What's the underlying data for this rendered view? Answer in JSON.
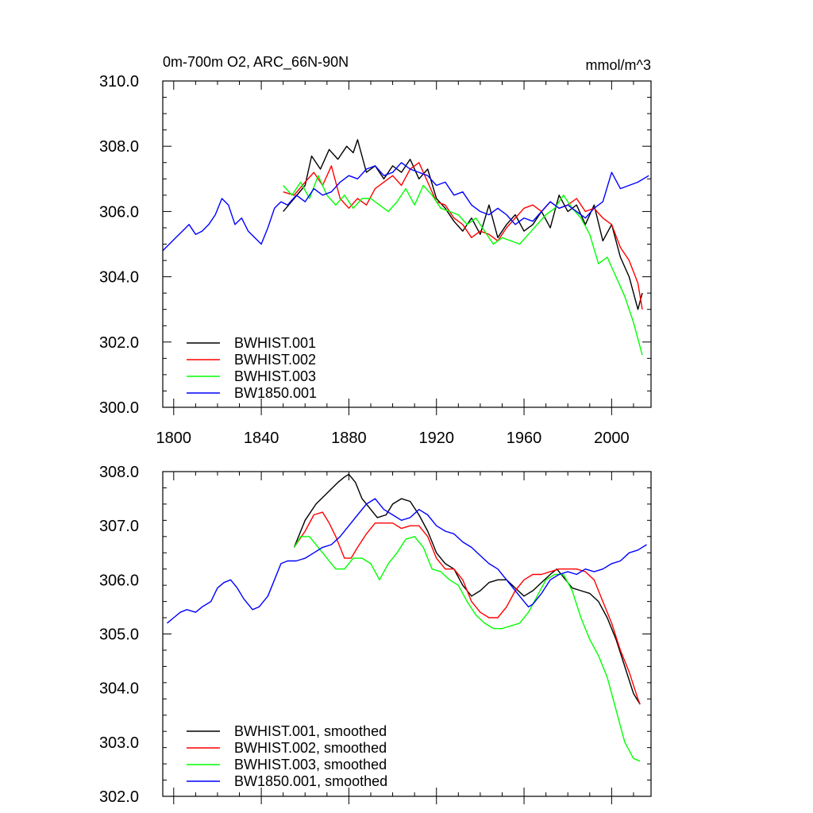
{
  "panels": [
    {
      "title_left": "0m-700m O2, ARC_66N-90N",
      "title_right": "mmol/m^3"
    },
    {
      "title_left": "",
      "title_right": ""
    }
  ],
  "chart_data": [
    {
      "type": "line",
      "xlim": [
        1795,
        2018
      ],
      "ylim": [
        300,
        310
      ],
      "x_ticks": [
        "1800",
        "1840",
        "1880",
        "1920",
        "1960",
        "2000"
      ],
      "y_ticks": [
        "300.0",
        "302.0",
        "304.0",
        "306.0",
        "308.0",
        "310.0"
      ],
      "legend_position": "bottom-left",
      "series": [
        {
          "name": "BWHIST.001",
          "color": "#000000",
          "x": [
            1850,
            1855,
            1860,
            1863,
            1867,
            1871,
            1875,
            1879,
            1882,
            1884,
            1888,
            1892,
            1896,
            1900,
            1904,
            1908,
            1912,
            1916,
            1920,
            1924,
            1928,
            1932,
            1936,
            1940,
            1944,
            1948,
            1952,
            1956,
            1960,
            1964,
            1968,
            1972,
            1976,
            1980,
            1984,
            1988,
            1992,
            1996,
            2000,
            2004,
            2008,
            2012,
            2014
          ],
          "y": [
            306.0,
            306.4,
            306.8,
            307.7,
            307.3,
            307.9,
            307.6,
            308.0,
            307.8,
            308.2,
            307.2,
            307.4,
            307.0,
            307.4,
            307.2,
            307.6,
            307.0,
            307.3,
            306.4,
            306.1,
            305.7,
            305.4,
            305.8,
            305.3,
            306.2,
            305.2,
            305.6,
            305.9,
            305.4,
            305.6,
            306.0,
            305.5,
            306.5,
            306.0,
            306.2,
            305.6,
            306.2,
            305.1,
            305.6,
            304.6,
            304.0,
            303.0,
            303.5
          ]
        },
        {
          "name": "BWHIST.002",
          "color": "#ff0000",
          "x": [
            1850,
            1855,
            1860,
            1864,
            1868,
            1872,
            1876,
            1880,
            1884,
            1888,
            1892,
            1896,
            1900,
            1904,
            1908,
            1912,
            1916,
            1920,
            1924,
            1928,
            1932,
            1936,
            1940,
            1944,
            1948,
            1952,
            1956,
            1960,
            1964,
            1968,
            1972,
            1976,
            1980,
            1984,
            1988,
            1992,
            1996,
            2000,
            2004,
            2008,
            2012,
            2014
          ],
          "y": [
            306.6,
            306.5,
            306.9,
            307.2,
            306.8,
            307.4,
            306.4,
            306.1,
            306.4,
            306.2,
            306.7,
            306.9,
            307.1,
            306.8,
            307.3,
            307.5,
            306.9,
            306.3,
            306.2,
            305.8,
            305.6,
            305.2,
            305.4,
            305.3,
            305.1,
            305.5,
            305.8,
            306.1,
            306.2,
            306.0,
            306.3,
            306.1,
            306.2,
            306.4,
            306.0,
            306.1,
            305.8,
            305.6,
            304.9,
            304.5,
            303.8,
            303.0
          ]
        },
        {
          "name": "BWHIST.003",
          "color": "#00ff00",
          "x": [
            1850,
            1854,
            1858,
            1862,
            1866,
            1870,
            1874,
            1878,
            1882,
            1886,
            1890,
            1894,
            1898,
            1902,
            1906,
            1910,
            1914,
            1918,
            1922,
            1926,
            1930,
            1934,
            1938,
            1942,
            1946,
            1950,
            1954,
            1958,
            1962,
            1966,
            1970,
            1974,
            1978,
            1982,
            1986,
            1990,
            1994,
            1998,
            2002,
            2006,
            2010,
            2014
          ],
          "y": [
            306.8,
            306.5,
            306.9,
            306.4,
            307.1,
            306.5,
            306.2,
            306.5,
            306.1,
            306.4,
            306.4,
            306.2,
            306.0,
            306.3,
            306.7,
            306.2,
            306.8,
            306.5,
            306.1,
            306.0,
            305.9,
            305.6,
            305.8,
            305.4,
            305.0,
            305.2,
            305.1,
            305.0,
            305.3,
            305.6,
            305.9,
            306.1,
            306.5,
            306.1,
            305.8,
            305.3,
            304.4,
            304.6,
            304.0,
            303.4,
            302.6,
            301.6
          ]
        },
        {
          "name": "BW1850.001",
          "color": "#0000ff",
          "x": [
            1795,
            1798,
            1801,
            1804,
            1807,
            1810,
            1813,
            1816,
            1819,
            1822,
            1825,
            1828,
            1831,
            1834,
            1837,
            1840,
            1843,
            1846,
            1849,
            1852,
            1856,
            1860,
            1864,
            1868,
            1872,
            1876,
            1880,
            1884,
            1888,
            1892,
            1896,
            1900,
            1904,
            1908,
            1912,
            1916,
            1920,
            1924,
            1928,
            1932,
            1936,
            1940,
            1944,
            1948,
            1952,
            1956,
            1960,
            1964,
            1968,
            1972,
            1976,
            1980,
            1984,
            1988,
            1992,
            1996,
            2000,
            2004,
            2008,
            2012,
            2017
          ],
          "y": [
            304.8,
            305.0,
            305.2,
            305.4,
            305.6,
            305.3,
            305.4,
            305.6,
            305.9,
            306.4,
            306.2,
            305.6,
            305.8,
            305.4,
            305.2,
            305.0,
            305.5,
            306.1,
            306.3,
            306.2,
            306.5,
            306.3,
            306.7,
            306.5,
            306.6,
            306.9,
            307.1,
            307.0,
            307.3,
            307.4,
            307.1,
            307.2,
            307.5,
            307.3,
            307.2,
            307.1,
            306.8,
            306.9,
            306.5,
            306.6,
            306.2,
            306.0,
            305.9,
            306.1,
            305.9,
            305.6,
            305.8,
            305.7,
            306.0,
            306.3,
            306.1,
            306.2,
            306.0,
            305.8,
            306.1,
            306.3,
            307.2,
            306.7,
            306.8,
            306.9,
            307.1
          ]
        }
      ]
    },
    {
      "type": "line",
      "xlim": [
        1795,
        2018
      ],
      "ylim": [
        302,
        308
      ],
      "x_ticks": [],
      "y_ticks": [
        "302.0",
        "303.0",
        "304.0",
        "305.0",
        "306.0",
        "307.0",
        "308.0"
      ],
      "legend_position": "bottom-left",
      "series": [
        {
          "name": "BWHIST.001, smoothed",
          "color": "#000000",
          "x": [
            1855,
            1860,
            1865,
            1870,
            1875,
            1878,
            1880,
            1883,
            1886,
            1890,
            1893,
            1897,
            1900,
            1904,
            1908,
            1912,
            1916,
            1920,
            1924,
            1928,
            1932,
            1936,
            1940,
            1944,
            1948,
            1952,
            1956,
            1960,
            1964,
            1968,
            1972,
            1975,
            1978,
            1982,
            1986,
            1990,
            1994,
            1998,
            2002,
            2006,
            2010,
            2013
          ],
          "y": [
            306.6,
            307.1,
            307.4,
            307.6,
            307.8,
            307.9,
            307.95,
            307.8,
            307.5,
            307.3,
            307.15,
            307.2,
            307.4,
            307.5,
            307.45,
            307.2,
            306.9,
            306.5,
            306.3,
            306.2,
            305.9,
            305.7,
            305.8,
            305.95,
            306.0,
            306.0,
            305.85,
            305.7,
            305.8,
            305.95,
            306.1,
            306.2,
            306.05,
            305.85,
            305.8,
            305.75,
            305.6,
            305.3,
            304.9,
            304.4,
            303.9,
            303.7
          ]
        },
        {
          "name": "BWHIST.002, smoothed",
          "color": "#ff0000",
          "x": [
            1855,
            1860,
            1864,
            1868,
            1871,
            1874,
            1878,
            1881,
            1884,
            1888,
            1892,
            1896,
            1900,
            1904,
            1908,
            1912,
            1916,
            1920,
            1924,
            1928,
            1932,
            1936,
            1940,
            1944,
            1948,
            1952,
            1956,
            1960,
            1964,
            1968,
            1972,
            1976,
            1980,
            1984,
            1988,
            1992,
            1996,
            2000,
            2004,
            2008,
            2012,
            2013
          ],
          "y": [
            306.6,
            306.9,
            307.2,
            307.25,
            307.05,
            306.8,
            306.4,
            306.4,
            306.6,
            306.85,
            307.05,
            307.05,
            307.05,
            306.95,
            307.0,
            307.0,
            306.8,
            306.4,
            306.2,
            306.2,
            306.0,
            305.6,
            305.4,
            305.3,
            305.3,
            305.5,
            305.8,
            306.0,
            306.1,
            306.1,
            306.15,
            306.2,
            306.2,
            306.2,
            306.15,
            306.0,
            305.6,
            305.2,
            304.7,
            304.3,
            303.8,
            303.7
          ]
        },
        {
          "name": "BWHIST.003, smoothed",
          "color": "#00ff00",
          "x": [
            1855,
            1858,
            1862,
            1866,
            1870,
            1874,
            1878,
            1882,
            1886,
            1890,
            1894,
            1898,
            1902,
            1906,
            1910,
            1914,
            1918,
            1922,
            1926,
            1930,
            1934,
            1938,
            1942,
            1946,
            1950,
            1954,
            1958,
            1962,
            1966,
            1970,
            1974,
            1978,
            1982,
            1986,
            1990,
            1994,
            1998,
            2002,
            2006,
            2010,
            2013
          ],
          "y": [
            306.6,
            306.8,
            306.8,
            306.6,
            306.4,
            306.2,
            306.2,
            306.4,
            306.4,
            306.3,
            306.0,
            306.3,
            306.5,
            306.75,
            306.8,
            306.6,
            306.2,
            306.15,
            306.0,
            305.9,
            305.6,
            305.35,
            305.2,
            305.1,
            305.1,
            305.15,
            305.2,
            305.4,
            305.7,
            306.0,
            306.1,
            306.1,
            305.8,
            305.3,
            304.9,
            304.6,
            304.2,
            303.6,
            303.0,
            302.7,
            302.65
          ]
        },
        {
          "name": "BW1850.001, smoothed",
          "color": "#0000ff",
          "x": [
            1797,
            1800,
            1803,
            1806,
            1810,
            1813,
            1817,
            1820,
            1823,
            1826,
            1829,
            1832,
            1836,
            1839,
            1843,
            1846,
            1849,
            1852,
            1856,
            1860,
            1864,
            1868,
            1872,
            1876,
            1880,
            1884,
            1888,
            1892,
            1896,
            1900,
            1904,
            1908,
            1912,
            1916,
            1920,
            1924,
            1928,
            1932,
            1936,
            1940,
            1944,
            1948,
            1952,
            1956,
            1960,
            1962,
            1964,
            1968,
            1972,
            1976,
            1980,
            1984,
            1988,
            1992,
            1996,
            2000,
            2004,
            2008,
            2012,
            2016
          ],
          "y": [
            305.2,
            305.3,
            305.4,
            305.45,
            305.4,
            305.5,
            305.6,
            305.85,
            305.95,
            306.0,
            305.85,
            305.65,
            305.45,
            305.5,
            305.7,
            306.0,
            306.3,
            306.35,
            306.35,
            306.4,
            306.5,
            306.6,
            306.65,
            306.8,
            307.0,
            307.2,
            307.4,
            307.5,
            307.3,
            307.2,
            307.1,
            307.15,
            307.3,
            307.2,
            307.0,
            306.9,
            306.85,
            306.7,
            306.6,
            306.45,
            306.3,
            306.2,
            306.0,
            305.8,
            305.6,
            305.5,
            305.55,
            305.75,
            306.0,
            306.1,
            306.15,
            306.1,
            306.2,
            306.15,
            306.2,
            306.3,
            306.35,
            306.5,
            306.55,
            306.65
          ]
        }
      ]
    }
  ]
}
